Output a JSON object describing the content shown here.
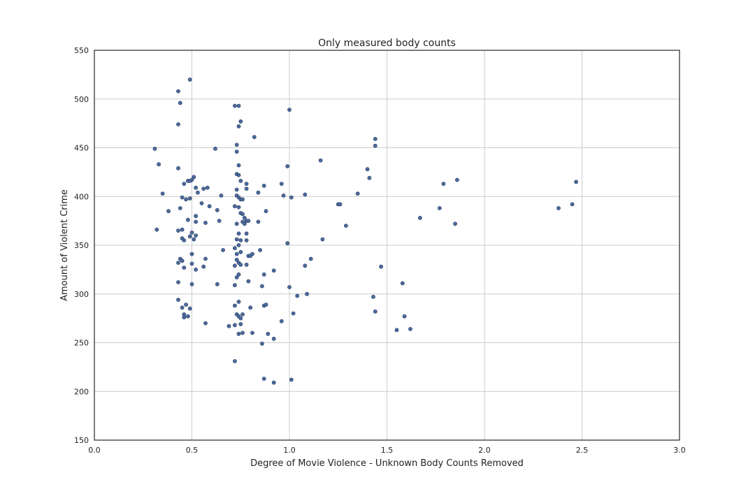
{
  "chart_data": {
    "type": "scatter",
    "title": "Only measured body counts",
    "xlabel": "Degree of Movie Violence - Unknown Body Counts Removed",
    "ylabel": "Amount of Violent Crime",
    "xlim": [
      0.0,
      3.0
    ],
    "ylim": [
      150,
      550
    ],
    "x_ticks": [
      "0.0",
      "0.5",
      "1.0",
      "1.5",
      "2.0",
      "2.5",
      "3.0"
    ],
    "y_ticks": [
      "150",
      "200",
      "250",
      "300",
      "350",
      "400",
      "450",
      "500",
      "550"
    ],
    "grid": true,
    "marker_color": "#4c6a9c",
    "points": [
      [
        0.31,
        449
      ],
      [
        0.32,
        366
      ],
      [
        0.33,
        433
      ],
      [
        0.35,
        403
      ],
      [
        0.38,
        385
      ],
      [
        0.43,
        508
      ],
      [
        0.43,
        474
      ],
      [
        0.44,
        496
      ],
      [
        0.43,
        429
      ],
      [
        0.44,
        388
      ],
      [
        0.45,
        399
      ],
      [
        0.46,
        413
      ],
      [
        0.47,
        397
      ],
      [
        0.43,
        365
      ],
      [
        0.45,
        366
      ],
      [
        0.45,
        357
      ],
      [
        0.46,
        355
      ],
      [
        0.44,
        336
      ],
      [
        0.43,
        332
      ],
      [
        0.45,
        334
      ],
      [
        0.46,
        327
      ],
      [
        0.43,
        312
      ],
      [
        0.43,
        294
      ],
      [
        0.45,
        286
      ],
      [
        0.47,
        289
      ],
      [
        0.46,
        279
      ],
      [
        0.46,
        276
      ],
      [
        0.49,
        520
      ],
      [
        0.48,
        416
      ],
      [
        0.49,
        416
      ],
      [
        0.5,
        417
      ],
      [
        0.51,
        420
      ],
      [
        0.49,
        398
      ],
      [
        0.48,
        376
      ],
      [
        0.5,
        363
      ],
      [
        0.49,
        359
      ],
      [
        0.51,
        356
      ],
      [
        0.5,
        341
      ],
      [
        0.52,
        325
      ],
      [
        0.5,
        331
      ],
      [
        0.5,
        310
      ],
      [
        0.49,
        285
      ],
      [
        0.48,
        277
      ],
      [
        0.52,
        409
      ],
      [
        0.53,
        404
      ],
      [
        0.52,
        380
      ],
      [
        0.52,
        374
      ],
      [
        0.52,
        360
      ],
      [
        0.55,
        393
      ],
      [
        0.56,
        408
      ],
      [
        0.58,
        409
      ],
      [
        0.57,
        373
      ],
      [
        0.56,
        328
      ],
      [
        0.57,
        336
      ],
      [
        0.57,
        270
      ],
      [
        0.59,
        390
      ],
      [
        0.62,
        449
      ],
      [
        0.63,
        386
      ],
      [
        0.64,
        375
      ],
      [
        0.63,
        310
      ],
      [
        0.65,
        401
      ],
      [
        0.66,
        345
      ],
      [
        0.69,
        267
      ],
      [
        0.72,
        493
      ],
      [
        0.74,
        493
      ],
      [
        0.75,
        477
      ],
      [
        0.74,
        472
      ],
      [
        0.73,
        453
      ],
      [
        0.73,
        446
      ],
      [
        0.74,
        432
      ],
      [
        0.73,
        423
      ],
      [
        0.74,
        422
      ],
      [
        0.75,
        416
      ],
      [
        0.73,
        407
      ],
      [
        0.73,
        401
      ],
      [
        0.74,
        399
      ],
      [
        0.75,
        397
      ],
      [
        0.76,
        397
      ],
      [
        0.72,
        390
      ],
      [
        0.74,
        389
      ],
      [
        0.75,
        383
      ],
      [
        0.76,
        382
      ],
      [
        0.77,
        378
      ],
      [
        0.76,
        374
      ],
      [
        0.77,
        372
      ],
      [
        0.73,
        372
      ],
      [
        0.74,
        362
      ],
      [
        0.73,
        356
      ],
      [
        0.75,
        355
      ],
      [
        0.74,
        350
      ],
      [
        0.72,
        347
      ],
      [
        0.73,
        341
      ],
      [
        0.75,
        343
      ],
      [
        0.73,
        335
      ],
      [
        0.74,
        332
      ],
      [
        0.72,
        329
      ],
      [
        0.75,
        330
      ],
      [
        0.73,
        317
      ],
      [
        0.74,
        320
      ],
      [
        0.72,
        309
      ],
      [
        0.74,
        292
      ],
      [
        0.72,
        288
      ],
      [
        0.73,
        279
      ],
      [
        0.74,
        277
      ],
      [
        0.75,
        275
      ],
      [
        0.76,
        279
      ],
      [
        0.72,
        268
      ],
      [
        0.75,
        269
      ],
      [
        0.74,
        259
      ],
      [
        0.76,
        260
      ],
      [
        0.72,
        231
      ],
      [
        0.78,
        413
      ],
      [
        0.78,
        408
      ],
      [
        0.78,
        375
      ],
      [
        0.79,
        375
      ],
      [
        0.78,
        362
      ],
      [
        0.78,
        355
      ],
      [
        0.79,
        339
      ],
      [
        0.81,
        341
      ],
      [
        0.8,
        339
      ],
      [
        0.78,
        330
      ],
      [
        0.79,
        313
      ],
      [
        0.8,
        286
      ],
      [
        0.81,
        260
      ],
      [
        0.82,
        461
      ],
      [
        0.84,
        404
      ],
      [
        0.87,
        411
      ],
      [
        0.84,
        374
      ],
      [
        0.88,
        385
      ],
      [
        0.85,
        345
      ],
      [
        0.86,
        308
      ],
      [
        0.87,
        320
      ],
      [
        0.87,
        288
      ],
      [
        0.88,
        289
      ],
      [
        0.86,
        249
      ],
      [
        0.89,
        259
      ],
      [
        0.87,
        213
      ],
      [
        0.92,
        324
      ],
      [
        0.92,
        254
      ],
      [
        0.92,
        209
      ],
      [
        0.96,
        413
      ],
      [
        0.97,
        401
      ],
      [
        0.96,
        272
      ],
      [
        0.99,
        431
      ],
      [
        1.0,
        489
      ],
      [
        1.01,
        399
      ],
      [
        0.99,
        352
      ],
      [
        1.0,
        307
      ],
      [
        1.02,
        280
      ],
      [
        1.01,
        212
      ],
      [
        1.04,
        298
      ],
      [
        1.08,
        402
      ],
      [
        1.08,
        329
      ],
      [
        1.09,
        300
      ],
      [
        1.11,
        336
      ],
      [
        1.16,
        437
      ],
      [
        1.17,
        356
      ],
      [
        1.25,
        392
      ],
      [
        1.26,
        392
      ],
      [
        1.29,
        370
      ],
      [
        1.35,
        403
      ],
      [
        1.4,
        428
      ],
      [
        1.41,
        419
      ],
      [
        1.44,
        459
      ],
      [
        1.44,
        452
      ],
      [
        1.43,
        297
      ],
      [
        1.44,
        282
      ],
      [
        1.47,
        328
      ],
      [
        1.55,
        263
      ],
      [
        1.58,
        311
      ],
      [
        1.59,
        277
      ],
      [
        1.62,
        264
      ],
      [
        1.67,
        378
      ],
      [
        1.77,
        388
      ],
      [
        1.79,
        413
      ],
      [
        1.86,
        417
      ],
      [
        1.85,
        372
      ],
      [
        2.38,
        388
      ],
      [
        2.45,
        392
      ],
      [
        2.47,
        415
      ]
    ]
  }
}
